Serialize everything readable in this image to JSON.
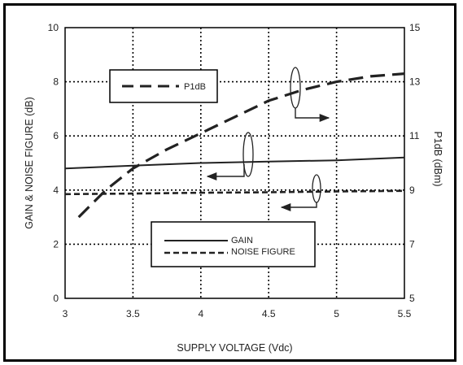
{
  "chart_data": {
    "type": "line",
    "xlabel": "SUPPLY VOLTAGE (Vdc)",
    "ylabel_left": "GAIN  & NOISE FIGURE (dB)",
    "ylabel_right": "P1dB (dBm)",
    "xlim": [
      3,
      5.5
    ],
    "ylim_left": [
      0,
      10
    ],
    "ylim_right": [
      5,
      15
    ],
    "x_ticks": [
      "3",
      "3.5",
      "4",
      "4.5",
      "5",
      "5.5"
    ],
    "y_left_ticks": [
      "0",
      "2",
      "4",
      "6",
      "8",
      "10"
    ],
    "y_right_ticks": [
      "5",
      "7",
      "9",
      "11",
      "13",
      "15"
    ],
    "grid": true,
    "series": [
      {
        "name": "P1dB",
        "axis": "right",
        "style": "long-dash",
        "x": [
          3.1,
          3.3,
          3.5,
          3.75,
          4.0,
          4.25,
          4.5,
          4.75,
          5.0,
          5.25,
          5.5
        ],
        "y": [
          8.0,
          9.0,
          9.8,
          10.5,
          11.1,
          11.7,
          12.3,
          12.7,
          13.0,
          13.2,
          13.3
        ]
      },
      {
        "name": "GAIN",
        "axis": "left",
        "style": "solid",
        "x": [
          3.0,
          3.5,
          4.0,
          4.5,
          5.0,
          5.5
        ],
        "y": [
          4.8,
          4.9,
          5.0,
          5.05,
          5.1,
          5.2
        ]
      },
      {
        "name": "NOISE FIGURE",
        "axis": "left",
        "style": "short-dash",
        "x": [
          3.0,
          3.5,
          4.0,
          4.5,
          5.0,
          5.5
        ],
        "y": [
          3.85,
          3.87,
          3.9,
          3.92,
          3.95,
          3.97
        ]
      }
    ],
    "legend": [
      {
        "label": "P1dB",
        "style": "long-dash"
      },
      {
        "label": "GAIN",
        "style": "solid"
      },
      {
        "label": "NOISE FIGURE",
        "style": "short-dash"
      }
    ]
  }
}
